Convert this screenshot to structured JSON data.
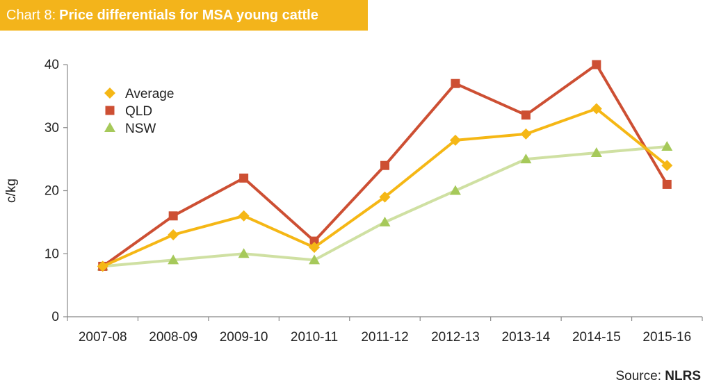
{
  "header": {
    "prefix": "Chart 8:",
    "title": "Price differentials for MSA young cattle"
  },
  "source": {
    "label": "Source:",
    "name": "NLRS"
  },
  "colors": {
    "average": "#f5b715",
    "qld": "#cd4f33",
    "nsw": "#a6c95a",
    "nsw_line": "#cfe0a2",
    "title_bar": "#f3b41b"
  },
  "chart_data": {
    "type": "line",
    "title": "Price differentials for MSA young cattle",
    "xlabel": "",
    "ylabel": "c/kg",
    "categories": [
      "2007-08",
      "2008-09",
      "2009-10",
      "2010-11",
      "2011-12",
      "2012-13",
      "2013-14",
      "2014-15",
      "2015-16"
    ],
    "ylim": [
      0,
      40
    ],
    "yticks": [
      0,
      10,
      20,
      30,
      40
    ],
    "grid": false,
    "legend_position": "top-left",
    "series": [
      {
        "name": "Average",
        "marker": "diamond",
        "values": [
          8,
          13,
          16,
          11,
          19,
          28,
          29,
          33,
          24
        ]
      },
      {
        "name": "QLD",
        "marker": "square",
        "values": [
          8,
          16,
          22,
          12,
          24,
          37,
          32,
          40,
          21
        ]
      },
      {
        "name": "NSW",
        "marker": "triangle",
        "values": [
          8,
          9,
          10,
          9,
          15,
          20,
          25,
          26,
          27
        ]
      }
    ]
  }
}
